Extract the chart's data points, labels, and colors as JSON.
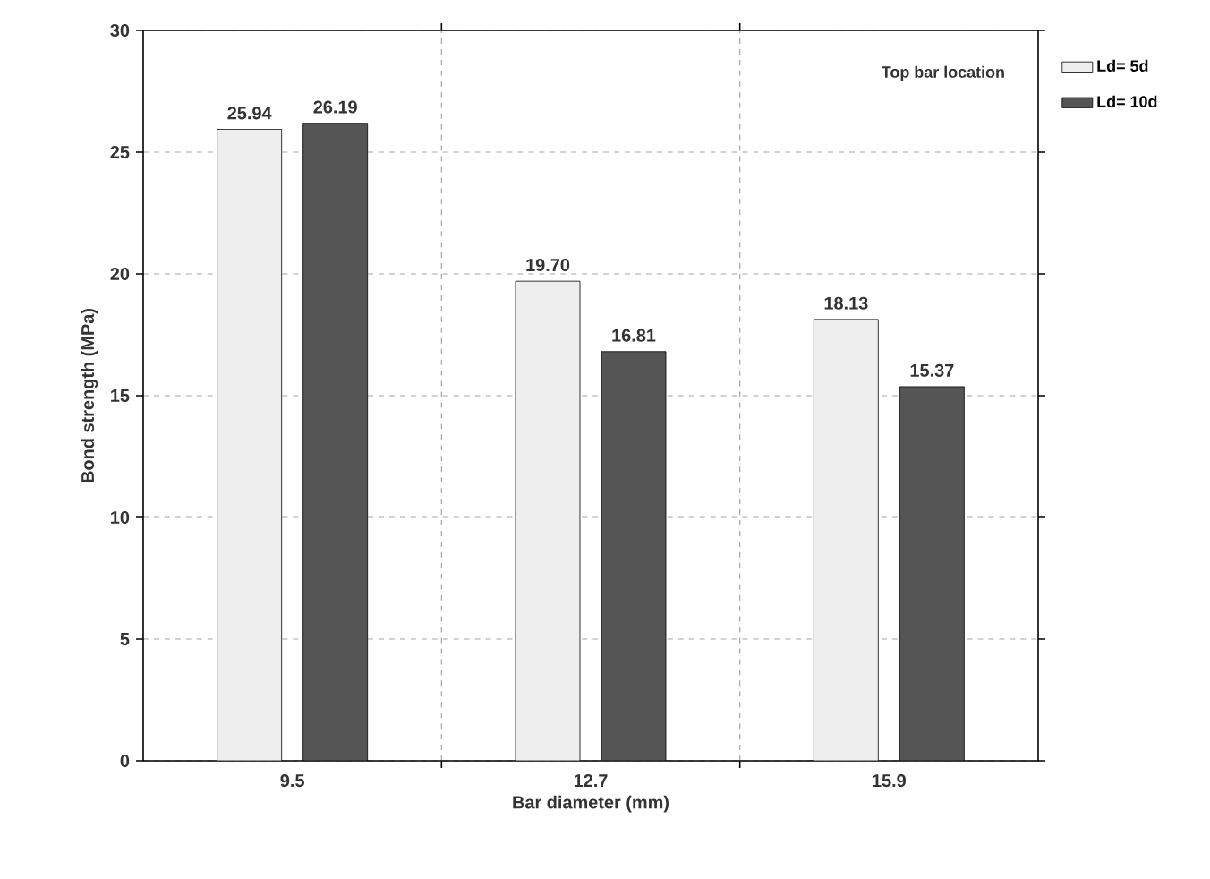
{
  "chart_data": {
    "type": "bar",
    "xlabel": "Bar diameter (mm)",
    "ylabel": "Bond strength (MPa)",
    "categories": [
      "9.5",
      "12.7",
      "15.9"
    ],
    "series": [
      {
        "name": "Ld= 5d",
        "color": "#eeeeee",
        "values": [
          25.94,
          19.7,
          18.13
        ],
        "value_labels": [
          "25.94",
          "19.70",
          "18.13"
        ]
      },
      {
        "name": "Ld= 10d",
        "color": "#555555",
        "values": [
          26.19,
          16.81,
          15.37
        ],
        "value_labels": [
          "26.19",
          "16.81",
          "15.37"
        ]
      }
    ],
    "ylim": [
      0,
      30
    ],
    "yticks": [
      0,
      5,
      10,
      15,
      20,
      25,
      30
    ],
    "grid": true,
    "legend": "top right",
    "annotations": [
      "Top bar location"
    ]
  }
}
